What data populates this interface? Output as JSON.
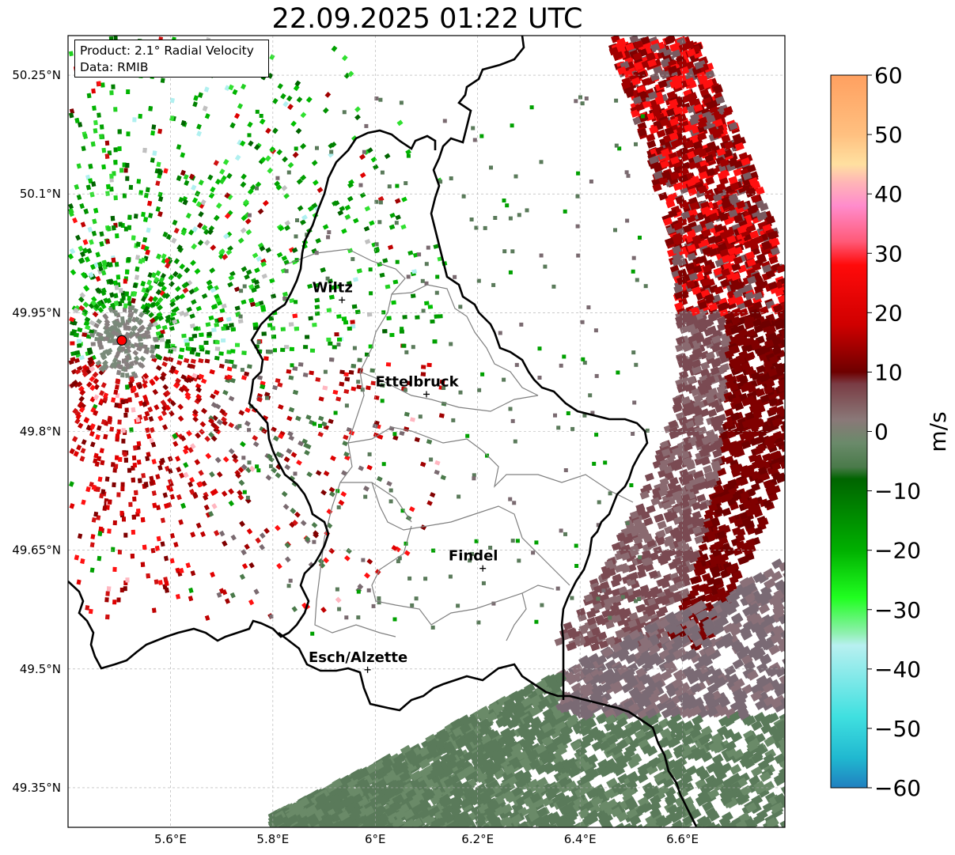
{
  "title": "22.09.2025 01:22 UTC",
  "info": {
    "product": "Product: 2.1° Radial Velocity",
    "source": "Data: RMIB"
  },
  "axes": {
    "lat_ticks": [
      "50.25°N",
      "50.1°N",
      "49.95°N",
      "49.8°N",
      "49.65°N",
      "49.5°N",
      "49.35°N"
    ],
    "lon_ticks": [
      "5.6°E",
      "5.8°E",
      "6°E",
      "6.2°E",
      "6.4°E",
      "6.6°E"
    ],
    "lon_range": [
      5.4,
      6.8
    ],
    "lat_range": [
      49.3,
      50.3
    ],
    "grid": "dashed"
  },
  "cities": [
    {
      "name": "Wiltz",
      "lon": 5.935,
      "lat": 49.966
    },
    {
      "name": "Ettelbruck",
      "lon": 6.1,
      "lat": 49.847
    },
    {
      "name": "Findel",
      "lon": 6.21,
      "lat": 49.627
    },
    {
      "name": "Esch/Alzette",
      "lon": 5.985,
      "lat": 49.499
    }
  ],
  "radar_site": {
    "lon": 5.505,
    "lat": 49.915,
    "color": "#ff0000"
  },
  "colorbar": {
    "unit": "m/s",
    "range": [
      -60,
      60
    ],
    "ticks": [
      "60",
      "50",
      "40",
      "30",
      "20",
      "10",
      "0",
      "−10",
      "−20",
      "−30",
      "−40",
      "−50",
      "−60"
    ],
    "stops": [
      {
        "v": 60,
        "c": "#ffa060"
      },
      {
        "v": 50,
        "c": "#ffc080"
      },
      {
        "v": 45,
        "c": "#ffe0a0"
      },
      {
        "v": 42,
        "c": "#ffb6b6"
      },
      {
        "v": 38,
        "c": "#ff8ccc"
      },
      {
        "v": 32,
        "c": "#ff5a78"
      },
      {
        "v": 28,
        "c": "#ff0a0a"
      },
      {
        "v": 18,
        "c": "#d00000"
      },
      {
        "v": 10,
        "c": "#6e0000"
      },
      {
        "v": 8,
        "c": "#7a3c44"
      },
      {
        "v": 2,
        "c": "#8a7878"
      },
      {
        "v": -2,
        "c": "#6a8a6a"
      },
      {
        "v": -6,
        "c": "#4a7a4a"
      },
      {
        "v": -8,
        "c": "#006400"
      },
      {
        "v": -20,
        "c": "#00b000"
      },
      {
        "v": -28,
        "c": "#20ff20"
      },
      {
        "v": -34,
        "c": "#90f0b0"
      },
      {
        "v": -36,
        "c": "#b8f0f0"
      },
      {
        "v": -48,
        "c": "#40e0e0"
      },
      {
        "v": -55,
        "c": "#20b8d0"
      },
      {
        "v": -60,
        "c": "#2080c0"
      }
    ]
  },
  "colors": {
    "approach_green": "#00aa00",
    "recede_red": "#c00000",
    "near_zero_green": "#5a7a5a",
    "near_zero_red": "#8a6a70",
    "border": "#000000",
    "canton": "#808080"
  }
}
